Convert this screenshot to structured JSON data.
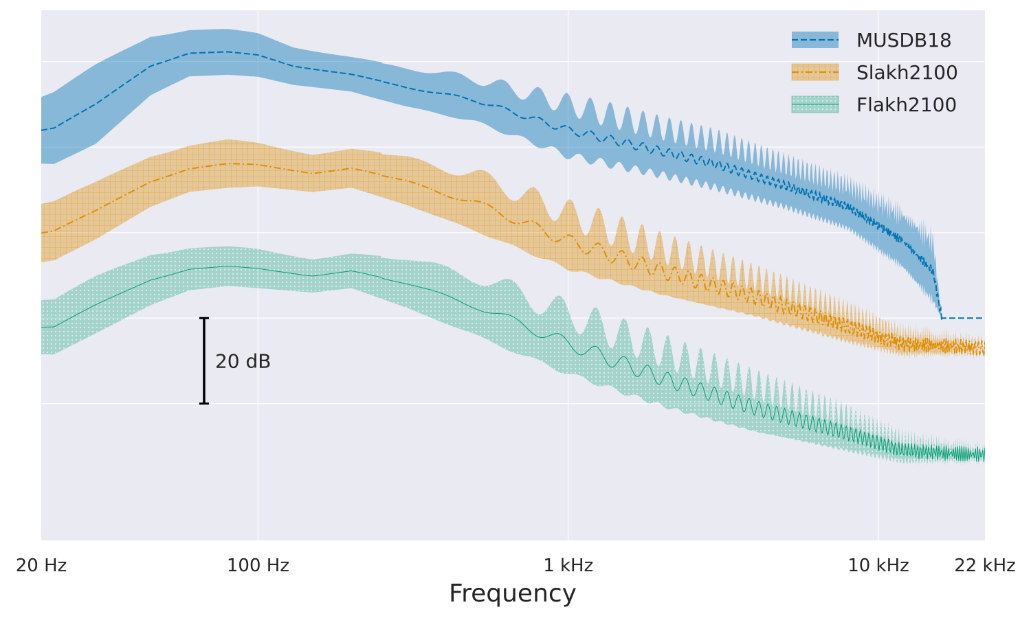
{
  "chart_data": {
    "type": "area",
    "title": "",
    "xlabel": "Frequency",
    "ylabel": "",
    "xscale": "log",
    "xlim_hz": [
      20,
      22050
    ],
    "ylim_db": [
      -112,
      12
    ],
    "x_ticks": [
      {
        "value": 20,
        "label": "20 Hz"
      },
      {
        "value": 100,
        "label": "100 Hz"
      },
      {
        "value": 1000,
        "label": "1 kHz"
      },
      {
        "value": 10000,
        "label": "10 kHz"
      },
      {
        "value": 22050,
        "label": "22 kHz"
      }
    ],
    "y_gridlines_db": [
      0,
      -20,
      -40,
      -60,
      -80
    ],
    "grid": true,
    "legend_position": "top-right",
    "scale_bar": {
      "label": "20 dB",
      "from_db": -60,
      "to_db": -80,
      "at_hz": 67
    },
    "series": [
      {
        "name": "MUSDB18",
        "color": "#0173b2",
        "line_style": "dashed",
        "fill_style": "solid",
        "points": [
          {
            "hz": 20,
            "mean": -16,
            "spread": 8
          },
          {
            "hz": 22,
            "mean": -15.5,
            "spread": 8.5
          },
          {
            "hz": 30,
            "mean": -10,
            "spread": 9
          },
          {
            "hz": 45,
            "mean": -1,
            "spread": 7
          },
          {
            "hz": 60,
            "mean": 2,
            "spread": 5.5
          },
          {
            "hz": 80,
            "mean": 2.2,
            "spread": 5.2
          },
          {
            "hz": 100,
            "mean": 1.5,
            "spread": 5
          },
          {
            "hz": 130,
            "mean": -1,
            "spread": 4.5
          },
          {
            "hz": 200,
            "mean": -3,
            "spread": 4
          },
          {
            "hz": 300,
            "mean": -6,
            "spread": 4.5
          },
          {
            "hz": 500,
            "mean": -9,
            "spread": 5
          },
          {
            "hz": 1000,
            "mean": -16,
            "spread": 6
          },
          {
            "hz": 2000,
            "mean": -21,
            "spread": 5.5
          },
          {
            "hz": 3000,
            "mean": -24,
            "spread": 5.5
          },
          {
            "hz": 5000,
            "mean": -29,
            "spread": 5
          },
          {
            "hz": 8000,
            "mean": -34,
            "spread": 5
          },
          {
            "hz": 12000,
            "mean": -42,
            "spread": 6
          },
          {
            "hz": 15000,
            "mean": -49,
            "spread": 7
          },
          {
            "hz": 16000,
            "mean": -60,
            "spread": 0
          }
        ],
        "tail_mean_db": -60
      },
      {
        "name": "Slakh2100",
        "color": "#de8f05",
        "line_style": "dashdot",
        "fill_style": "grid-hatch",
        "points": [
          {
            "hz": 20,
            "mean": -40,
            "spread": 7
          },
          {
            "hz": 22,
            "mean": -39.5,
            "spread": 7
          },
          {
            "hz": 30,
            "mean": -35,
            "spread": 6.5
          },
          {
            "hz": 45,
            "mean": -28,
            "spread": 6
          },
          {
            "hz": 60,
            "mean": -25,
            "spread": 5.5
          },
          {
            "hz": 80,
            "mean": -24,
            "spread": 5.5
          },
          {
            "hz": 100,
            "mean": -24.2,
            "spread": 5
          },
          {
            "hz": 150,
            "mean": -26,
            "spread": 4.5
          },
          {
            "hz": 200,
            "mean": -25,
            "spread": 4.5
          },
          {
            "hz": 300,
            "mean": -28,
            "spread": 5.5
          },
          {
            "hz": 500,
            "mean": -33,
            "spread": 6.5
          },
          {
            "hz": 1000,
            "mean": -42,
            "spread": 6.5
          },
          {
            "hz": 2000,
            "mean": -49,
            "spread": 5.5
          },
          {
            "hz": 4000,
            "mean": -55,
            "spread": 4.5
          },
          {
            "hz": 8000,
            "mean": -62,
            "spread": 3.5
          },
          {
            "hz": 12000,
            "mean": -66,
            "spread": 2.5
          },
          {
            "hz": 22050,
            "mean": -67,
            "spread": 1
          }
        ]
      },
      {
        "name": "Flakh2100",
        "color": "#029e73",
        "line_style": "solid",
        "fill_style": "dot-hatch",
        "points": [
          {
            "hz": 20,
            "mean": -62,
            "spread": 6.5
          },
          {
            "hz": 22,
            "mean": -62,
            "spread": 6.5
          },
          {
            "hz": 30,
            "mean": -57,
            "spread": 6.5
          },
          {
            "hz": 45,
            "mean": -51,
            "spread": 6
          },
          {
            "hz": 60,
            "mean": -48.5,
            "spread": 5
          },
          {
            "hz": 80,
            "mean": -48,
            "spread": 4.5
          },
          {
            "hz": 100,
            "mean": -48.5,
            "spread": 4.5
          },
          {
            "hz": 150,
            "mean": -50,
            "spread": 4
          },
          {
            "hz": 200,
            "mean": -49,
            "spread": 4
          },
          {
            "hz": 300,
            "mean": -52,
            "spread": 5.5
          },
          {
            "hz": 500,
            "mean": -57,
            "spread": 7
          },
          {
            "hz": 1000,
            "mean": -66,
            "spread": 7
          },
          {
            "hz": 2000,
            "mean": -74,
            "spread": 6.5
          },
          {
            "hz": 4000,
            "mean": -81,
            "spread": 5.5
          },
          {
            "hz": 8000,
            "mean": -87,
            "spread": 4
          },
          {
            "hz": 12000,
            "mean": -91,
            "spread": 2.5
          },
          {
            "hz": 22050,
            "mean": -92,
            "spread": 1
          }
        ]
      }
    ]
  }
}
